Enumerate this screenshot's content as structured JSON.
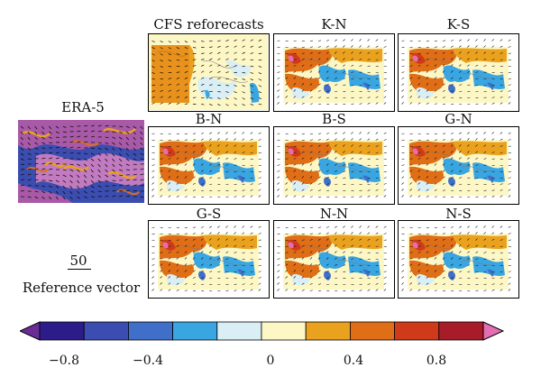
{
  "titles": {
    "era5": "ERA-5",
    "cfs": "CFS reforecasts",
    "kn": "K-N",
    "ks": "K-S",
    "bn": "B-N",
    "bs": "B-S",
    "gn": "G-N",
    "gs": "G-S",
    "nn": "N-N",
    "ns": "N-S"
  },
  "reference": {
    "value": "50",
    "label": "Reference vector"
  },
  "colorbar": {
    "colors": [
      "#2c1c8a",
      "#3b4db0",
      "#3f6fc9",
      "#39a6e2",
      "#d9eef5",
      "#fdf7c6",
      "#eaa21e",
      "#e06e16",
      "#cf3a1a",
      "#a81c2a"
    ],
    "low_color": "#6a2d97",
    "high_color": "#e46db4",
    "tick_labels": [
      "-0.8",
      "-0.4",
      "0",
      "0.4",
      "0.8"
    ],
    "tick_values": [
      -0.8,
      -0.4,
      0,
      0.4,
      0.8
    ],
    "range": [
      -1.0,
      1.0
    ]
  }
}
